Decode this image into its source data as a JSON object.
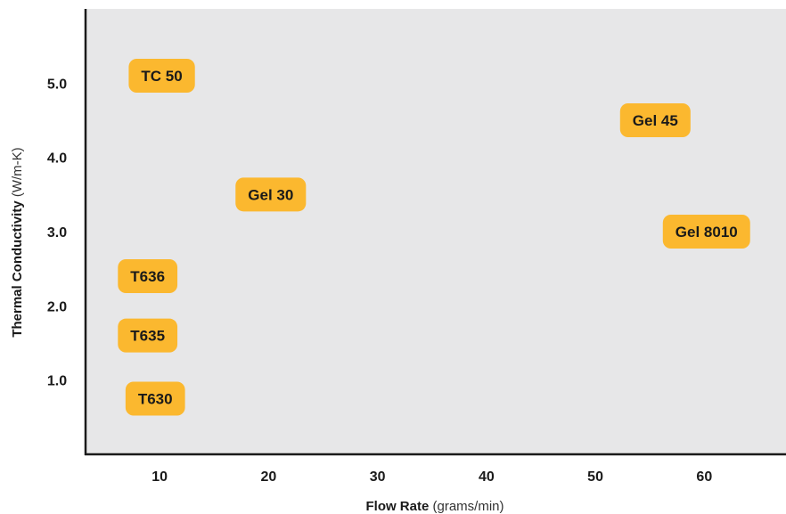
{
  "chart_data": {
    "type": "scatter",
    "title": "",
    "xlabel": {
      "main": "Flow Rate",
      "unit": "(grams/min)"
    },
    "ylabel": {
      "main": "Thermal Conductivity",
      "unit": "(W/m-K)"
    },
    "xlim": [
      3.2,
      67.5
    ],
    "ylim": [
      0,
      6
    ],
    "xticks": [
      10,
      20,
      30,
      40,
      50,
      60
    ],
    "yticks": [
      1.0,
      2.0,
      3.0,
      4.0,
      5.0
    ],
    "ytick_labels": [
      "1.0",
      "2.0",
      "3.0",
      "4.0",
      "5.0"
    ],
    "grid": false,
    "colors": {
      "plot_bg": "#e7e7e8",
      "marker": "#fbb82f",
      "axis": "#1a1a1a"
    },
    "points": [
      {
        "label": "TC 50",
        "x": 10.2,
        "y": 5.1
      },
      {
        "label": "Gel 45",
        "x": 55.5,
        "y": 4.5
      },
      {
        "label": "Gel 30",
        "x": 20.2,
        "y": 3.5
      },
      {
        "label": "Gel 8010",
        "x": 60.2,
        "y": 3.0
      },
      {
        "label": "T636",
        "x": 8.9,
        "y": 2.4
      },
      {
        "label": "T635",
        "x": 8.9,
        "y": 1.6
      },
      {
        "label": "T630",
        "x": 9.6,
        "y": 0.75
      }
    ]
  }
}
